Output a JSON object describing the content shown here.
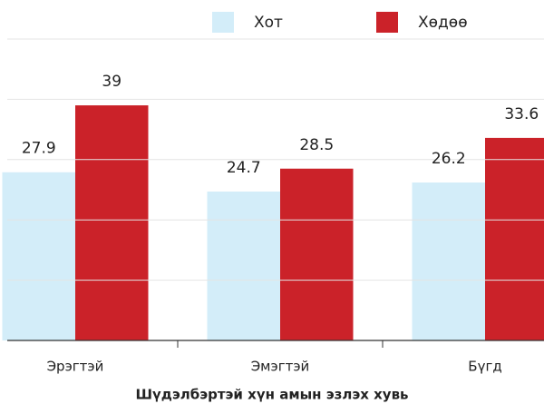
{
  "chart_data": {
    "type": "bar",
    "title": "Шүдэлбэртэй хүн амын эзлэх хувь",
    "categories": [
      "Эрэгтэй",
      "Эмэгтэй",
      "Бүгд"
    ],
    "series": [
      {
        "name": "Хот",
        "color": "#d3edf9",
        "values": [
          27.9,
          24.7,
          26.2
        ]
      },
      {
        "name": "Хөдөө",
        "color": "#cb2229",
        "values": [
          39,
          28.5,
          33.6
        ]
      }
    ],
    "ylim": [
      0,
      50
    ],
    "yticks": [
      0,
      10,
      20,
      30,
      40,
      50
    ],
    "grid": true,
    "legend": "top"
  }
}
